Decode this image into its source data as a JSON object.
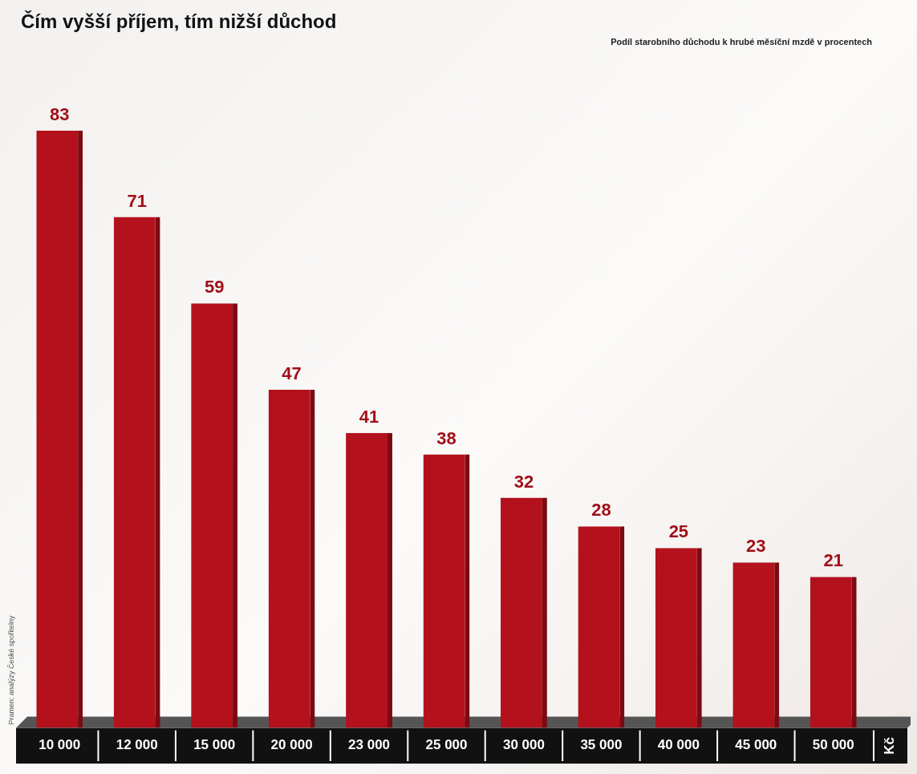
{
  "chart_data": {
    "type": "bar",
    "title": "Čím vyšší příjem, tím nižší důchod",
    "subtitle": "Podíl starobního důchodu k hrubé měsíční mzdě v procentech",
    "xlabel": "Kč",
    "source": "Pramen: analýzy České spořitelny",
    "categories": [
      "10 000",
      "12 000",
      "15 000",
      "20 000",
      "23 000",
      "25 000",
      "30 000",
      "35 000",
      "40 000",
      "45 000",
      "50 000"
    ],
    "values": [
      83,
      71,
      59,
      47,
      41,
      38,
      32,
      28,
      25,
      23,
      21
    ],
    "color": "#b3111c",
    "ylim": [
      0,
      90
    ],
    "grid": false,
    "data_labels": true,
    "tick_labels": "x"
  }
}
